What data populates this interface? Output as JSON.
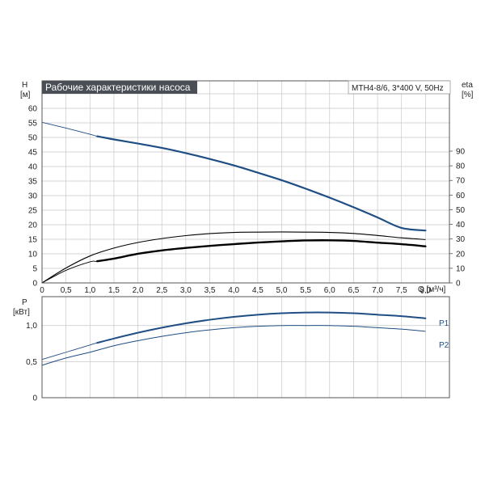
{
  "header": {
    "title": "Рабочие характеристики насоса",
    "model": "MTH4-8/6, 3*400 V, 50Hz"
  },
  "colors": {
    "title_bg": "#4a4f55",
    "curve_blue": "#1f4e84",
    "curve_black": "#000000",
    "grid": "#c8c8c8",
    "frame": "#555555"
  },
  "chart_data": [
    {
      "type": "line",
      "title": "Рабочие характеристики насоса",
      "ylabel": "H",
      "yunit": "[м]",
      "y2label": "eta",
      "y2unit": "[%]",
      "xlabel": "Q [м³/ч]",
      "xlim": [
        0,
        8.5
      ],
      "ylim": [
        0,
        65
      ],
      "y2lim": [
        0,
        90
      ],
      "xticks": [
        "0",
        "0,5",
        "1,0",
        "1,5",
        "2,0",
        "2,5",
        "3,0",
        "3,5",
        "4,0",
        "4,5",
        "5,0",
        "5,5",
        "6,0",
        "6,5",
        "7,0",
        "7,5",
        "8,0"
      ],
      "yticks": [
        "0",
        "5",
        "10",
        "15",
        "20",
        "25",
        "30",
        "35",
        "40",
        "45",
        "50",
        "55",
        "60"
      ],
      "y2ticks": [
        "0",
        "10",
        "20",
        "30",
        "40",
        "50",
        "60",
        "70",
        "80",
        "90"
      ],
      "grid": true,
      "series": [
        {
          "axis": "left",
          "x": [
            0,
            0.5,
            1.0,
            1.15,
            1.5,
            2.0,
            2.5,
            3.0,
            3.5,
            4.0,
            4.5,
            5.0,
            5.5,
            6.0,
            6.5,
            7.0,
            7.5,
            8.0
          ],
          "values": [
            55.2,
            53.2,
            51.1,
            50.4,
            49.3,
            47.9,
            46.4,
            44.6,
            42.6,
            40.4,
            37.9,
            35.3,
            32.4,
            29.3,
            26.0,
            22.5,
            18.9,
            18.0
          ],
          "operating_range": [
            1.15,
            8.0
          ],
          "color": "#1f4e84"
        },
        {
          "axis": "right",
          "x": [
            0,
            0.5,
            1.0,
            1.5,
            2.0,
            2.5,
            3.0,
            3.5,
            4.0,
            4.5,
            5.0,
            5.5,
            6.0,
            6.5,
            7.0,
            7.5,
            8.0
          ],
          "values": [
            0,
            10.2,
            18.4,
            23.8,
            27.6,
            30.3,
            32.3,
            33.7,
            34.5,
            34.7,
            34.8,
            34.7,
            34.5,
            33.8,
            32.4,
            30.8,
            29.6
          ],
          "color": "#000000"
        },
        {
          "axis": "right",
          "x": [
            0,
            0.5,
            1.0,
            1.15,
            1.5,
            2.0,
            2.5,
            3.0,
            3.5,
            4.0,
            4.5,
            5.0,
            5.5,
            6.0,
            6.5,
            7.0,
            7.5,
            8.0
          ],
          "values": [
            0,
            8.6,
            14.4,
            14.8,
            16.6,
            19.9,
            22.2,
            23.9,
            25.3,
            26.5,
            27.6,
            28.4,
            29.0,
            29.1,
            28.7,
            27.5,
            26.5,
            25.0
          ],
          "operating_range": [
            1.15,
            8.0
          ],
          "color": "#000000"
        }
      ]
    },
    {
      "type": "line",
      "ylabel": "P",
      "yunit": "[кВт]",
      "xlim": [
        0,
        8.5
      ],
      "ylim": [
        0,
        1.4
      ],
      "yticks": [
        "0",
        "0,5",
        "1,0"
      ],
      "grid": true,
      "series": [
        {
          "name": "P1",
          "x": [
            0,
            0.5,
            1.0,
            1.15,
            1.5,
            2.0,
            2.5,
            3.0,
            3.5,
            4.0,
            4.5,
            5.0,
            5.5,
            6.0,
            6.5,
            7.0,
            7.5,
            8.0
          ],
          "values": [
            0.53,
            0.63,
            0.73,
            0.76,
            0.82,
            0.9,
            0.97,
            1.03,
            1.08,
            1.12,
            1.15,
            1.17,
            1.18,
            1.18,
            1.17,
            1.15,
            1.13,
            1.1
          ],
          "operating_range": [
            1.15,
            8.0
          ],
          "color": "#1f4e84"
        },
        {
          "name": "P2",
          "x": [
            0,
            0.5,
            1.0,
            1.5,
            2.0,
            2.5,
            3.0,
            3.5,
            4.0,
            4.5,
            5.0,
            5.5,
            6.0,
            6.5,
            7.0,
            7.5,
            8.0
          ],
          "values": [
            0.45,
            0.55,
            0.63,
            0.72,
            0.79,
            0.85,
            0.9,
            0.94,
            0.97,
            0.99,
            1.0,
            1.0,
            1.0,
            0.99,
            0.97,
            0.95,
            0.92
          ],
          "color": "#1f4e84"
        }
      ]
    }
  ]
}
